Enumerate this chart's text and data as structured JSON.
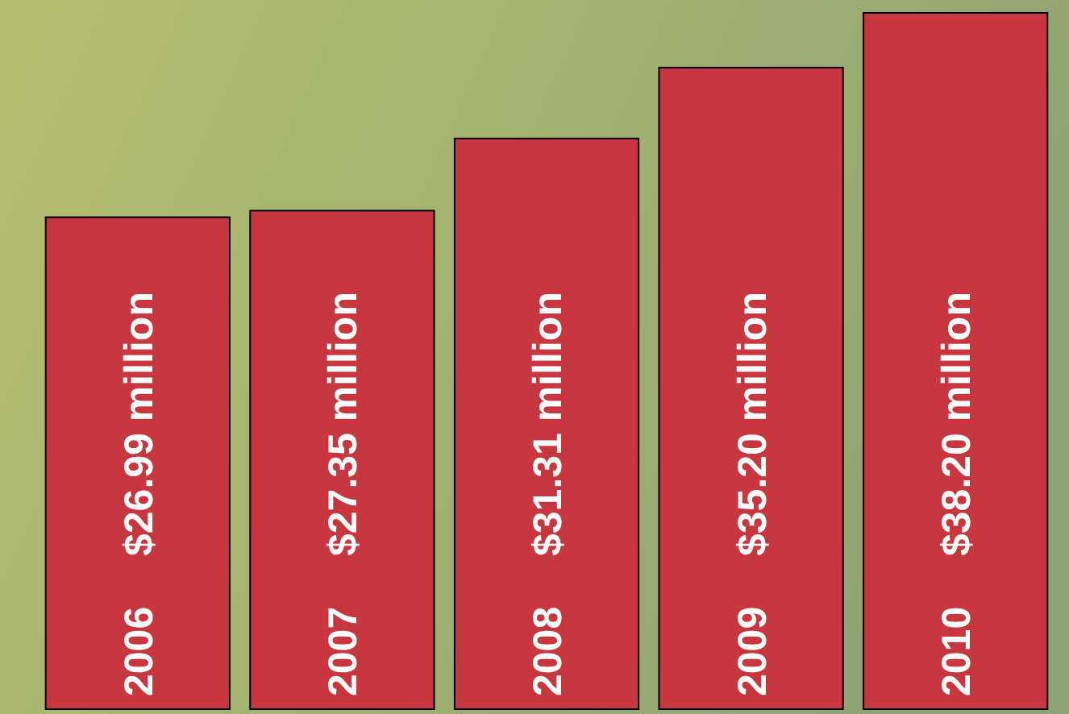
{
  "chart_data": {
    "type": "bar",
    "categories": [
      "2006",
      "2007",
      "2008",
      "2009",
      "2010"
    ],
    "values": [
      26.99,
      27.35,
      31.31,
      35.2,
      38.2
    ],
    "value_labels": [
      "$26.99 million",
      "$27.35 million",
      "$31.31 million",
      "$35.20 million",
      "$38.20 million"
    ],
    "color": "#c8363f"
  }
}
